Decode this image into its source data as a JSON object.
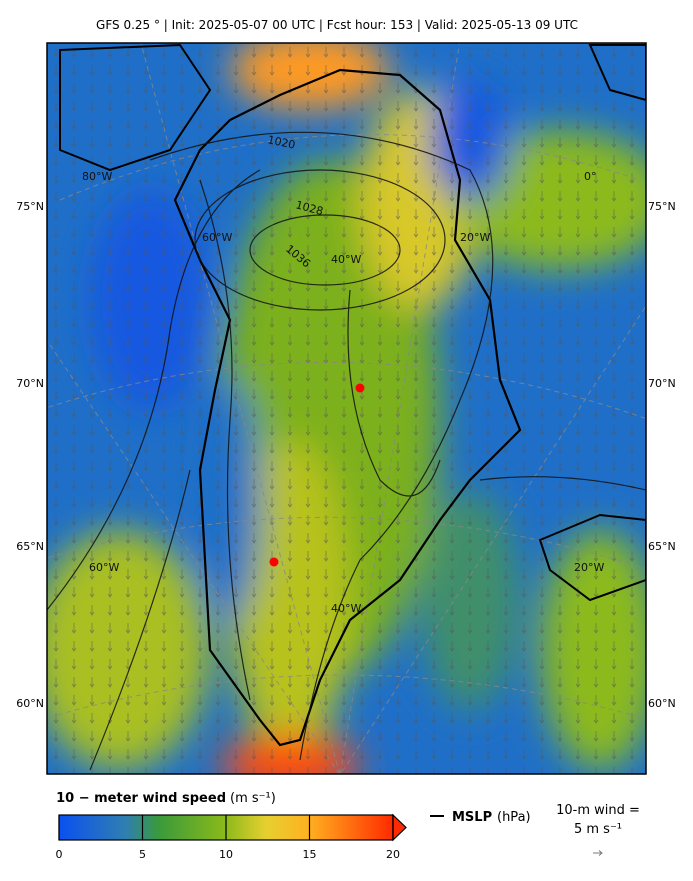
{
  "header": {
    "title": "GFS 0.25 °  |  Init: 2025-05-07 00 UTC  |  Fcst hour: 153  |  Valid: 2025-05-13 09 UTC"
  },
  "map": {
    "lat_labels_left": [
      "75°N",
      "70°N",
      "65°N",
      "60°N"
    ],
    "lat_labels_right": [
      "75°N",
      "70°N",
      "65°N",
      "60°N"
    ],
    "lon_labels": [
      "80°W",
      "60°W",
      "40°W",
      "20°W",
      "0°",
      "60°W",
      "40°W",
      "20°W"
    ],
    "contour_labels": [
      "1020",
      "1028",
      "1036"
    ]
  },
  "colorbar": {
    "label": "10 − meter wind speed",
    "units": "(m s⁻¹)",
    "lim": [
      0,
      20
    ],
    "ticks": [
      0,
      5,
      10,
      15,
      20
    ]
  },
  "legend": {
    "mslp_label": "MSLP",
    "mslp_units": "(hPa)",
    "wind_label": "10-m wind =",
    "wind_value": "5 m s⁻¹"
  }
}
